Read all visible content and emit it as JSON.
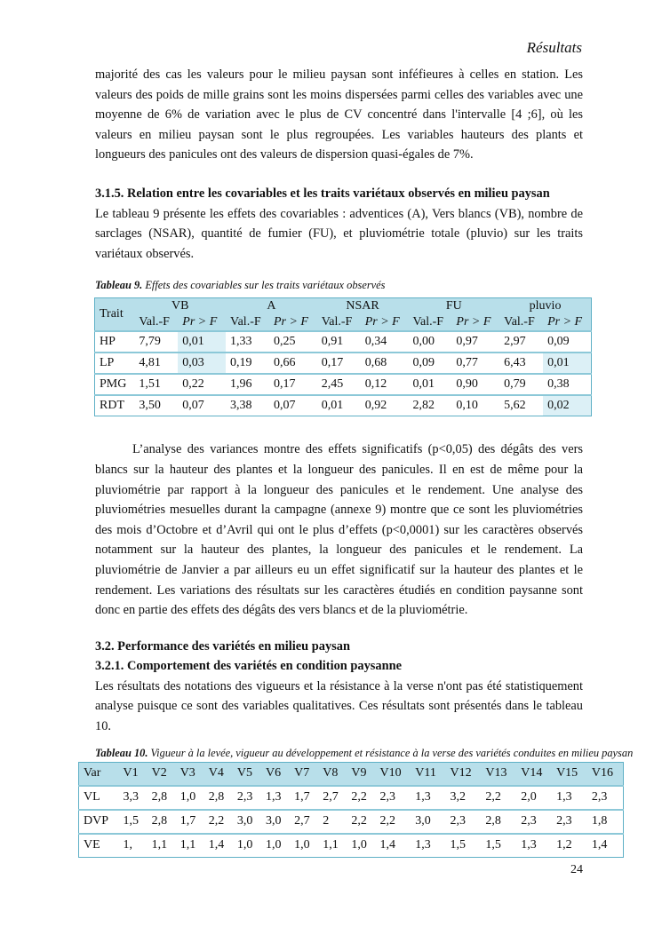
{
  "header": "Résultats",
  "para1": "majorité des cas les valeurs pour le milieu paysan sont inféfieures à celles en station. Les valeurs des poids de mille grains sont les moins dispersées parmi celles des variables avec une moyenne de 6% de variation avec le plus de CV concentré dans l'intervalle [4 ;6], où les valeurs en milieu paysan sont le plus regroupées. Les variables hauteurs des plants et longueurs des panicules ont des valeurs de dispersion quasi-égales de 7%.",
  "heading315": "3.1.5. Relation entre les covariables et les traits variétaux observés en milieu paysan",
  "para2": "Le tableau 9 présente les effets des covariables : adventices (A), Vers blancs (VB), nombre de sarclages (NSAR), quantité de fumier (FU), et pluviométrie totale (pluvio) sur les traits variétaux observés.",
  "table9": {
    "caption_label": "Tableau 9.",
    "caption_text": " Effets des covariables sur les traits variétaux observés",
    "trait_header": "Trait",
    "groups": [
      "VB",
      "A",
      "NSAR",
      "FU",
      "pluvio"
    ],
    "subheaders": [
      "Val.-F",
      "Pr > F",
      "Val.-F",
      "Pr > F",
      "Val.-F",
      "Pr > F",
      "Val.-F",
      "Pr > F",
      "Val.-F",
      "Pr > F"
    ],
    "rows": [
      {
        "trait": "HP",
        "values": [
          "7,79",
          "0,01",
          "1,33",
          "0,25",
          "0,91",
          "0,34",
          "0,00",
          "0,97",
          "2,97",
          "0,09"
        ],
        "highlight": [
          1
        ]
      },
      {
        "trait": "LP",
        "values": [
          "4,81",
          "0,03",
          "0,19",
          "0,66",
          "0,17",
          "0,68",
          "0,09",
          "0,77",
          "6,43",
          "0,01"
        ],
        "highlight": [
          1,
          9
        ]
      },
      {
        "trait": "PMG",
        "values": [
          "1,51",
          "0,22",
          "1,96",
          "0,17",
          "2,45",
          "0,12",
          "0,01",
          "0,90",
          "0,79",
          "0,38"
        ],
        "highlight": []
      },
      {
        "trait": "RDT",
        "values": [
          "3,50",
          "0,07",
          "3,38",
          "0,07",
          "0,01",
          "0,92",
          "2,82",
          "0,10",
          "5,62",
          "0,02"
        ],
        "highlight": [
          9
        ]
      }
    ],
    "highlight_color": "#dcf0f6",
    "header_color": "#b8dfea"
  },
  "para3": "L’analyse des variances montre des effets significatifs (p<0,05) des dégâts des vers blancs sur la hauteur des plantes et la longueur des panicules. Il en est de même pour la pluviométrie par rapport à la longueur des panicules et le rendement. Une analyse des pluviométries mesuelles durant la campagne (annexe 9) montre que ce sont les pluviométries des mois d’Octobre et d’Avril qui ont le plus d’effets (p<0,0001) sur les caractères observés notamment sur la hauteur des plantes, la longueur des panicules et le rendement. La pluviométrie de Janvier a par ailleurs eu un effet significatif sur la hauteur des plantes et le rendement. Les variations des résultats sur les caractères étudiés en condition paysanne sont donc en partie des effets des dégâts des vers blancs et de la pluviométrie.",
  "heading32": "3.2. Performance des variétés en milieu paysan",
  "heading321": "3.2.1. Comportement des variétés en condition paysanne",
  "para4": "Les résultats des notations des vigueurs et la résistance à la verse n'ont pas été statistiquement analyse puisque ce sont des variables qualitatives. Ces résultats sont présentés dans le tableau 10.",
  "table10": {
    "caption_label": "Tableau 10.",
    "caption_text": " Vigueur à la levée, vigueur au développement et résistance à la verse des variétés conduites en milieu paysan",
    "headers": [
      "Var",
      "V1",
      "V2",
      "V3",
      "V4",
      "V5",
      "V6",
      "V7",
      "V8",
      "V9",
      "V10",
      "V11",
      "V12",
      "V13",
      "V14",
      "V15",
      "V16"
    ],
    "rows": [
      [
        "VL",
        "3,3",
        "2,8",
        "1,0",
        "2,8",
        "2,3",
        "1,3",
        "1,7",
        "2,7",
        "2,2",
        "2,3",
        "1,3",
        "3,2",
        "2,2",
        "2,0",
        "1,3",
        "2,3"
      ],
      [
        "DVP",
        "1,5",
        "2,8",
        "1,7",
        "2,2",
        "3,0",
        "3,0",
        "2,7",
        "2",
        "2,2",
        "2,2",
        "3,0",
        "2,3",
        "2,8",
        "2,3",
        "2,3",
        "1,8"
      ],
      [
        "VE",
        "1,",
        "1,1",
        "1,1",
        "1,4",
        "1,0",
        "1,0",
        "1,0",
        "1,1",
        "1,0",
        "1,4",
        "1,3",
        "1,5",
        "1,5",
        "1,3",
        "1,2",
        "1,4"
      ]
    ]
  },
  "page_number": "24"
}
